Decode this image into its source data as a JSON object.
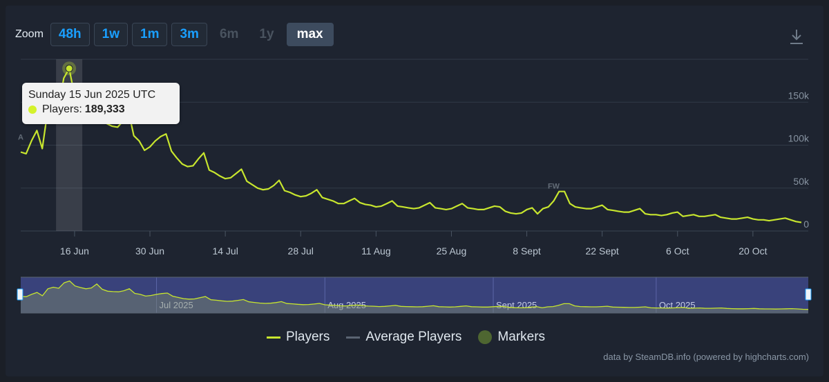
{
  "zoom": {
    "label": "Zoom",
    "buttons": [
      {
        "label": "48h",
        "state": "enabled"
      },
      {
        "label": "1w",
        "state": "enabled"
      },
      {
        "label": "1m",
        "state": "enabled"
      },
      {
        "label": "3m",
        "state": "enabled"
      },
      {
        "label": "6m",
        "state": "disabled"
      },
      {
        "label": "1y",
        "state": "disabled"
      },
      {
        "label": "max",
        "state": "active"
      }
    ]
  },
  "icons": {
    "download": "download-icon"
  },
  "tooltip": {
    "date": "Sunday 15 Jun 2025 UTC",
    "label": "Players:",
    "value": "189,333"
  },
  "legend": [
    {
      "label": "Players",
      "color": "#c8e62e",
      "kind": "line"
    },
    {
      "label": "Average Players",
      "color": "#5a6472",
      "kind": "line"
    },
    {
      "label": "Markers",
      "color": "#4e6631",
      "kind": "dot"
    }
  ],
  "credits": "data by SteamDB.info (powered by highcharts.com)",
  "colors": {
    "players": "#c8e62e",
    "navigator_mask": "#3e4888",
    "background": "#1e2430"
  },
  "chart_data": {
    "type": "line",
    "x_axis_ticks": [
      {
        "date": "2025-06-16",
        "label": "16 Jun"
      },
      {
        "date": "2025-06-30",
        "label": "30 Jun"
      },
      {
        "date": "2025-07-14",
        "label": "14 Jul"
      },
      {
        "date": "2025-07-28",
        "label": "28 Jul"
      },
      {
        "date": "2025-08-11",
        "label": "11 Aug"
      },
      {
        "date": "2025-08-25",
        "label": "25 Aug"
      },
      {
        "date": "2025-09-08",
        "label": "8 Sept"
      },
      {
        "date": "2025-09-22",
        "label": "22 Sept"
      },
      {
        "date": "2025-10-06",
        "label": "6 Oct"
      },
      {
        "date": "2025-10-20",
        "label": "20 Oct"
      }
    ],
    "y_axis": {
      "ticks": [
        0,
        50000,
        100000,
        150000
      ],
      "tick_labels": [
        "0",
        "50k",
        "100k",
        "150k"
      ],
      "range": [
        0,
        200000
      ]
    },
    "x_range": [
      "2025-06-06",
      "2025-10-29"
    ],
    "grid": true,
    "legend_position": "bottom",
    "highlighted_point": {
      "date": "2025-06-15",
      "value": 189333
    },
    "markers": [
      {
        "label": "A",
        "date": "2025-06-06"
      },
      {
        "label": "FW",
        "date": "2025-09-13"
      }
    ],
    "navigator_labels": [
      {
        "date": "2025-07-01",
        "label": "Jul 2025"
      },
      {
        "date": "2025-08-01",
        "label": "Aug 2025"
      },
      {
        "date": "2025-09-01",
        "label": "Sept 2025"
      },
      {
        "date": "2025-10-01",
        "label": "Oct 2025"
      }
    ],
    "series": [
      {
        "name": "Players",
        "points": [
          [
            "2025-06-06",
            92000
          ],
          [
            "2025-06-07",
            90000
          ],
          [
            "2025-06-08",
            105000
          ],
          [
            "2025-06-09",
            117000
          ],
          [
            "2025-06-10",
            96000
          ],
          [
            "2025-06-11",
            140000
          ],
          [
            "2025-06-12",
            150000
          ],
          [
            "2025-06-13",
            143000
          ],
          [
            "2025-06-14",
            178000
          ],
          [
            "2025-06-15",
            189333
          ],
          [
            "2025-06-16",
            158000
          ],
          [
            "2025-06-17",
            148000
          ],
          [
            "2025-06-18",
            140000
          ],
          [
            "2025-06-19",
            145000
          ],
          [
            "2025-06-20",
            170000
          ],
          [
            "2025-06-21",
            137000
          ],
          [
            "2025-06-22",
            125000
          ],
          [
            "2025-06-23",
            122000
          ],
          [
            "2025-06-24",
            121000
          ],
          [
            "2025-06-25",
            128000
          ],
          [
            "2025-06-26",
            140000
          ],
          [
            "2025-06-27",
            111000
          ],
          [
            "2025-06-28",
            105000
          ],
          [
            "2025-06-29",
            94000
          ],
          [
            "2025-06-30",
            98000
          ],
          [
            "2025-07-01",
            105000
          ],
          [
            "2025-07-02",
            110000
          ],
          [
            "2025-07-03",
            113000
          ],
          [
            "2025-07-04",
            93000
          ],
          [
            "2025-07-05",
            85000
          ],
          [
            "2025-07-06",
            78000
          ],
          [
            "2025-07-07",
            75000
          ],
          [
            "2025-07-08",
            76000
          ],
          [
            "2025-07-09",
            84000
          ],
          [
            "2025-07-10",
            91000
          ],
          [
            "2025-07-11",
            71000
          ],
          [
            "2025-07-12",
            68000
          ],
          [
            "2025-07-13",
            64000
          ],
          [
            "2025-07-14",
            61000
          ],
          [
            "2025-07-15",
            62000
          ],
          [
            "2025-07-16",
            67000
          ],
          [
            "2025-07-17",
            72000
          ],
          [
            "2025-07-18",
            58000
          ],
          [
            "2025-07-19",
            54000
          ],
          [
            "2025-07-20",
            50000
          ],
          [
            "2025-07-21",
            48000
          ],
          [
            "2025-07-22",
            49000
          ],
          [
            "2025-07-23",
            53000
          ],
          [
            "2025-07-24",
            59000
          ],
          [
            "2025-07-25",
            47000
          ],
          [
            "2025-07-26",
            45000
          ],
          [
            "2025-07-27",
            42000
          ],
          [
            "2025-07-28",
            40000
          ],
          [
            "2025-07-29",
            41000
          ],
          [
            "2025-07-30",
            44000
          ],
          [
            "2025-07-31",
            48000
          ],
          [
            "2025-08-01",
            39000
          ],
          [
            "2025-08-02",
            37000
          ],
          [
            "2025-08-03",
            35000
          ],
          [
            "2025-08-04",
            32000
          ],
          [
            "2025-08-05",
            32000
          ],
          [
            "2025-08-06",
            35000
          ],
          [
            "2025-08-07",
            38000
          ],
          [
            "2025-08-08",
            33000
          ],
          [
            "2025-08-09",
            31000
          ],
          [
            "2025-08-10",
            30000
          ],
          [
            "2025-08-11",
            28000
          ],
          [
            "2025-08-12",
            29000
          ],
          [
            "2025-08-13",
            32000
          ],
          [
            "2025-08-14",
            35000
          ],
          [
            "2025-08-15",
            29000
          ],
          [
            "2025-08-16",
            28000
          ],
          [
            "2025-08-17",
            27000
          ],
          [
            "2025-08-18",
            26000
          ],
          [
            "2025-08-19",
            27000
          ],
          [
            "2025-08-20",
            30000
          ],
          [
            "2025-08-21",
            33000
          ],
          [
            "2025-08-22",
            27000
          ],
          [
            "2025-08-23",
            26000
          ],
          [
            "2025-08-24",
            25000
          ],
          [
            "2025-08-25",
            26000
          ],
          [
            "2025-08-26",
            29000
          ],
          [
            "2025-08-27",
            32000
          ],
          [
            "2025-08-28",
            27000
          ],
          [
            "2025-08-29",
            26000
          ],
          [
            "2025-08-30",
            25000
          ],
          [
            "2025-08-31",
            25000
          ],
          [
            "2025-09-01",
            27000
          ],
          [
            "2025-09-02",
            29000
          ],
          [
            "2025-09-03",
            28000
          ],
          [
            "2025-09-04",
            23000
          ],
          [
            "2025-09-05",
            21000
          ],
          [
            "2025-09-06",
            20000
          ],
          [
            "2025-09-07",
            21000
          ],
          [
            "2025-09-08",
            25000
          ],
          [
            "2025-09-09",
            27000
          ],
          [
            "2025-09-10",
            20000
          ],
          [
            "2025-09-11",
            26000
          ],
          [
            "2025-09-12",
            28000
          ],
          [
            "2025-09-13",
            35000
          ],
          [
            "2025-09-14",
            46000
          ],
          [
            "2025-09-15",
            46000
          ],
          [
            "2025-09-16",
            32000
          ],
          [
            "2025-09-17",
            28000
          ],
          [
            "2025-09-18",
            27000
          ],
          [
            "2025-09-19",
            26000
          ],
          [
            "2025-09-20",
            26000
          ],
          [
            "2025-09-21",
            28000
          ],
          [
            "2025-09-22",
            30000
          ],
          [
            "2025-09-23",
            25000
          ],
          [
            "2025-09-24",
            24000
          ],
          [
            "2025-09-25",
            23000
          ],
          [
            "2025-09-26",
            22000
          ],
          [
            "2025-09-27",
            22000
          ],
          [
            "2025-09-28",
            24000
          ],
          [
            "2025-09-29",
            26000
          ],
          [
            "2025-09-30",
            20000
          ],
          [
            "2025-10-01",
            19000
          ],
          [
            "2025-10-02",
            19000
          ],
          [
            "2025-10-03",
            18000
          ],
          [
            "2025-10-04",
            19000
          ],
          [
            "2025-10-05",
            21000
          ],
          [
            "2025-10-06",
            22000
          ],
          [
            "2025-10-07",
            17000
          ],
          [
            "2025-10-08",
            18000
          ],
          [
            "2025-10-09",
            19000
          ],
          [
            "2025-10-10",
            17000
          ],
          [
            "2025-10-11",
            17000
          ],
          [
            "2025-10-12",
            18000
          ],
          [
            "2025-10-13",
            19000
          ],
          [
            "2025-10-14",
            16000
          ],
          [
            "2025-10-15",
            15000
          ],
          [
            "2025-10-16",
            14000
          ],
          [
            "2025-10-17",
            14000
          ],
          [
            "2025-10-18",
            15000
          ],
          [
            "2025-10-19",
            16000
          ],
          [
            "2025-10-20",
            14000
          ],
          [
            "2025-10-21",
            13000
          ],
          [
            "2025-10-22",
            13000
          ],
          [
            "2025-10-23",
            12000
          ],
          [
            "2025-10-24",
            13000
          ],
          [
            "2025-10-25",
            14000
          ],
          [
            "2025-10-26",
            15000
          ],
          [
            "2025-10-27",
            13000
          ],
          [
            "2025-10-28",
            11000
          ],
          [
            "2025-10-29",
            10000
          ]
        ]
      }
    ]
  }
}
